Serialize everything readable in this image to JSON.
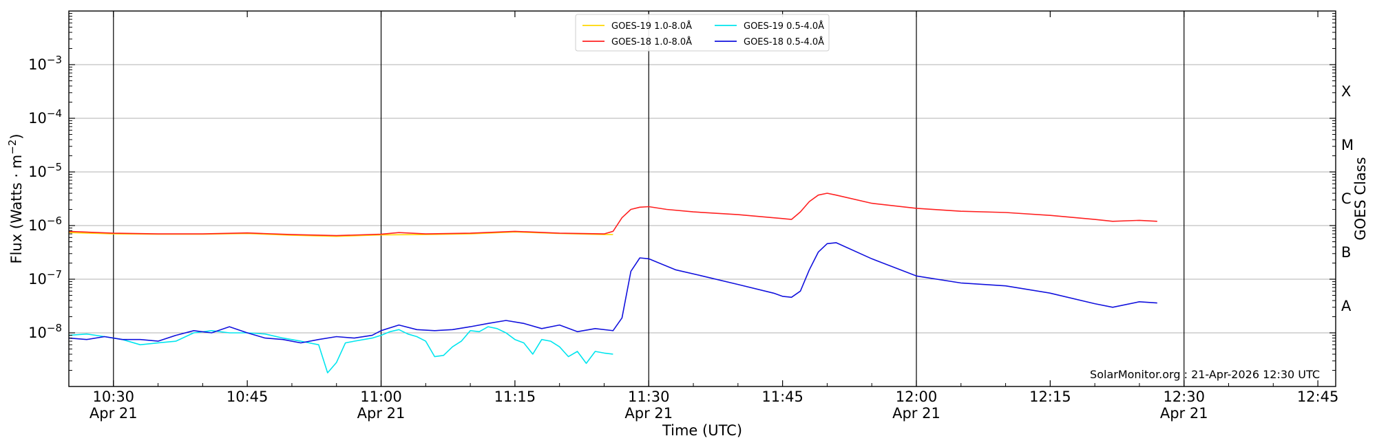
{
  "chart_data": {
    "type": "line",
    "xlabel": "Time (UTC)",
    "ylabel_main": "Flux (Watts",
    "ylabel_unit": "m",
    "ylabel_exp": "−2",
    "ylabel_dot": "·",
    "y2label": "GOES Class",
    "yscale": "log",
    "ylim": [
      1e-09,
      0.01
    ],
    "xlim_minutes": [
      "10:25",
      "12:47"
    ],
    "grid": "horizontal",
    "legend_position": "top-center",
    "x_ticks": [
      {
        "time": "10:30",
        "label": "10:30",
        "date": "Apr 21"
      },
      {
        "time": "10:45",
        "label": "10:45",
        "date": ""
      },
      {
        "time": "11:00",
        "label": "11:00",
        "date": "Apr 21"
      },
      {
        "time": "11:15",
        "label": "11:15",
        "date": ""
      },
      {
        "time": "11:30",
        "label": "11:30",
        "date": "Apr 21"
      },
      {
        "time": "11:45",
        "label": "11:45",
        "date": ""
      },
      {
        "time": "12:00",
        "label": "12:00",
        "date": "Apr 21"
      },
      {
        "time": "12:15",
        "label": "12:15",
        "date": ""
      },
      {
        "time": "12:30",
        "label": "12:30",
        "date": "Apr 21"
      },
      {
        "time": "12:45",
        "label": "12:45",
        "date": ""
      }
    ],
    "vlines": [
      "10:30",
      "11:00",
      "11:30",
      "12:00",
      "12:30"
    ],
    "y_ticks": [
      {
        "value": 1e-08,
        "base": "10",
        "exp": "−8"
      },
      {
        "value": 1e-07,
        "base": "10",
        "exp": "−7"
      },
      {
        "value": 1e-06,
        "base": "10",
        "exp": "−6"
      },
      {
        "value": 1e-05,
        "base": "10",
        "exp": "−5"
      },
      {
        "value": 0.0001,
        "base": "10",
        "exp": "−4"
      },
      {
        "value": 0.001,
        "base": "10",
        "exp": "−3"
      }
    ],
    "goes_classes": [
      {
        "label": "A",
        "value": 3.16e-08
      },
      {
        "label": "B",
        "value": 3.16e-07
      },
      {
        "label": "C",
        "value": 3.16e-06
      },
      {
        "label": "M",
        "value": 3.16e-05
      },
      {
        "label": "X",
        "value": 0.000316
      }
    ],
    "series": [
      {
        "name": "GOES-19 1.0-8.0Å",
        "color": "#ffd700",
        "legend_col": 0,
        "legend_row": 0,
        "times": [
          "10:25",
          "10:30",
          "10:35",
          "10:40",
          "10:45",
          "10:50",
          "10:55",
          "11:00",
          "11:05",
          "11:10",
          "11:15",
          "11:20",
          "11:25",
          "11:26"
        ],
        "values": [
          7.4e-07,
          7e-07,
          6.9e-07,
          6.9e-07,
          7.1e-07,
          6.6e-07,
          6.3e-07,
          6.7e-07,
          6.8e-07,
          7e-07,
          7.6e-07,
          7.1e-07,
          6.8e-07,
          6.8e-07
        ]
      },
      {
        "name": "GOES-18 1.0-8.0Å",
        "color": "#ff2020",
        "legend_col": 0,
        "legend_row": 1,
        "times": [
          "10:25",
          "10:30",
          "10:35",
          "10:40",
          "10:45",
          "10:50",
          "10:55",
          "11:00",
          "11:02",
          "11:05",
          "11:10",
          "11:15",
          "11:20",
          "11:25",
          "11:26",
          "11:27",
          "11:28",
          "11:29",
          "11:30",
          "11:32",
          "11:35",
          "11:40",
          "11:45",
          "11:46",
          "11:47",
          "11:48",
          "11:49",
          "11:50",
          "11:51",
          "11:55",
          "12:00",
          "12:05",
          "12:10",
          "12:15",
          "12:20",
          "12:22",
          "12:25",
          "12:27"
        ],
        "values": [
          7.8e-07,
          7.2e-07,
          7e-07,
          7e-07,
          7.3e-07,
          6.8e-07,
          6.5e-07,
          6.9e-07,
          7.4e-07,
          7e-07,
          7.2e-07,
          7.8e-07,
          7.2e-07,
          7e-07,
          7.8e-07,
          1.4e-06,
          2e-06,
          2.2e-06,
          2.25e-06,
          2e-06,
          1.8e-06,
          1.6e-06,
          1.35e-06,
          1.3e-06,
          1.8e-06,
          2.8e-06,
          3.7e-06,
          4e-06,
          3.7e-06,
          2.6e-06,
          2.1e-06,
          1.85e-06,
          1.75e-06,
          1.55e-06,
          1.3e-06,
          1.2e-06,
          1.25e-06,
          1.2e-06
        ]
      },
      {
        "name": "GOES-19 0.5-4.0Å",
        "color": "#00e5ee",
        "legend_col": 1,
        "legend_row": 0,
        "times": [
          "10:25",
          "10:27",
          "10:29",
          "10:31",
          "10:33",
          "10:35",
          "10:37",
          "10:39",
          "10:41",
          "10:43",
          "10:45",
          "10:47",
          "10:49",
          "10:51",
          "10:53",
          "10:54",
          "10:55",
          "10:56",
          "10:57",
          "10:59",
          "11:00",
          "11:01",
          "11:02",
          "11:03",
          "11:04",
          "11:05",
          "11:06",
          "11:07",
          "11:08",
          "11:09",
          "11:10",
          "11:11",
          "11:12",
          "11:13",
          "11:14",
          "11:15",
          "11:16",
          "11:17",
          "11:18",
          "11:19",
          "11:20",
          "11:21",
          "11:22",
          "11:23",
          "11:24",
          "11:25",
          "11:26"
        ],
        "values": [
          9e-09,
          9.5e-09,
          8.5e-09,
          7.5e-09,
          6e-09,
          6.5e-09,
          7e-09,
          1e-08,
          1.1e-08,
          1e-08,
          1e-08,
          9.5e-09,
          8e-09,
          7e-09,
          6e-09,
          1.8e-09,
          2.8e-09,
          6.5e-09,
          7e-09,
          8e-09,
          9e-09,
          1.05e-08,
          1.15e-08,
          9.5e-09,
          8.5e-09,
          7e-09,
          3.6e-09,
          3.8e-09,
          5.5e-09,
          7e-09,
          1.1e-08,
          1.05e-08,
          1.3e-08,
          1.2e-08,
          1e-08,
          7.5e-09,
          6.5e-09,
          4e-09,
          7.5e-09,
          7e-09,
          5.5e-09,
          3.6e-09,
          4.5e-09,
          2.7e-09,
          4.5e-09,
          4.2e-09,
          4e-09
        ]
      },
      {
        "name": "GOES-18 0.5-4.0Å",
        "color": "#1010dd",
        "legend_col": 1,
        "legend_row": 1,
        "times": [
          "10:25",
          "10:27",
          "10:29",
          "10:31",
          "10:33",
          "10:35",
          "10:37",
          "10:39",
          "10:41",
          "10:43",
          "10:45",
          "10:47",
          "10:49",
          "10:51",
          "10:53",
          "10:55",
          "10:57",
          "10:59",
          "11:00",
          "11:02",
          "11:04",
          "11:06",
          "11:08",
          "11:10",
          "11:12",
          "11:14",
          "11:16",
          "11:18",
          "11:20",
          "11:22",
          "11:24",
          "11:26",
          "11:27",
          "11:28",
          "11:29",
          "11:30",
          "11:33",
          "11:36",
          "11:40",
          "11:44",
          "11:45",
          "11:46",
          "11:47",
          "11:48",
          "11:49",
          "11:50",
          "11:51",
          "11:55",
          "12:00",
          "12:05",
          "12:10",
          "12:15",
          "12:20",
          "12:22",
          "12:25",
          "12:27"
        ],
        "values": [
          8e-09,
          7.5e-09,
          8.5e-09,
          7.5e-09,
          7.5e-09,
          7e-09,
          9e-09,
          1.1e-08,
          1e-08,
          1.3e-08,
          1e-08,
          8e-09,
          7.5e-09,
          6.5e-09,
          7.5e-09,
          8.5e-09,
          8e-09,
          9e-09,
          1.1e-08,
          1.4e-08,
          1.15e-08,
          1.1e-08,
          1.15e-08,
          1.3e-08,
          1.5e-08,
          1.7e-08,
          1.5e-08,
          1.2e-08,
          1.4e-08,
          1.05e-08,
          1.2e-08,
          1.1e-08,
          1.9e-08,
          1.4e-07,
          2.5e-07,
          2.4e-07,
          1.5e-07,
          1.15e-07,
          8e-08,
          5.5e-08,
          4.8e-08,
          4.6e-08,
          6e-08,
          1.5e-07,
          3.2e-07,
          4.6e-07,
          4.8e-07,
          2.4e-07,
          1.15e-07,
          8.5e-08,
          7.5e-08,
          5.5e-08,
          3.5e-08,
          3e-08,
          3.8e-08,
          3.6e-08
        ]
      }
    ],
    "credit": "SolarMonitor.org : 21-Apr-2026 12:30 UTC"
  }
}
